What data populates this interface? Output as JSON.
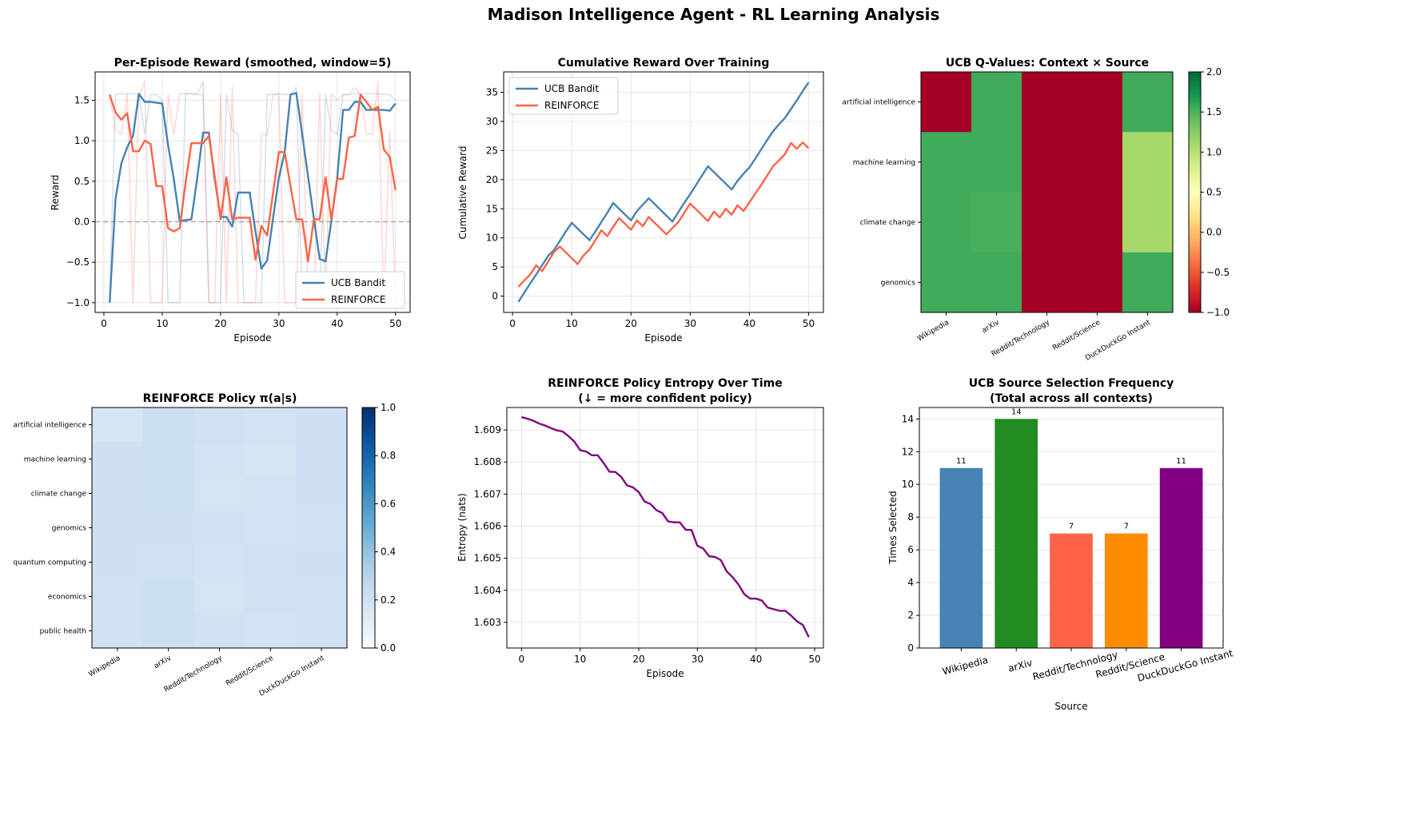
{
  "suptitle": "Madison Intelligence Agent - RL Learning Analysis",
  "colors": {
    "ucb": "#4682b4",
    "reinforce": "#ff6347",
    "entropy": "#800080",
    "grid": "#e5e5e5",
    "heat_green": "#3aa55a",
    "heat_lightgreen": "#a2d869",
    "heat_red": "#a50026"
  },
  "panels": {
    "reward": {
      "title": "Per-Episode Reward (smoothed, window=5)",
      "xlabel": "Episode",
      "ylabel": "Reward",
      "xticks": [
        "0",
        "10",
        "20",
        "30",
        "40",
        "50"
      ],
      "yticks": [
        "−1.0",
        "−0.5",
        "0.0",
        "0.5",
        "1.0",
        "1.5"
      ],
      "legend": [
        "UCB Bandit",
        "REINFORCE"
      ]
    },
    "cumulative": {
      "title": "Cumulative Reward Over Training",
      "xlabel": "Episode",
      "ylabel": "Cumulative Reward",
      "xticks": [
        "0",
        "10",
        "20",
        "30",
        "40",
        "50"
      ],
      "yticks": [
        "0",
        "5",
        "10",
        "15",
        "20",
        "25",
        "30",
        "35"
      ],
      "legend": [
        "UCB Bandit",
        "REINFORCE"
      ]
    },
    "ucb_q": {
      "title": "UCB Q-Values: Context × Source",
      "rows": [
        "artificial intelligence",
        "machine learning",
        "climate change",
        "genomics"
      ],
      "cols": [
        "Wikipedia",
        "arXiv",
        "Reddit/Technology",
        "Reddit/Science",
        "DuckDuckGo Instant"
      ],
      "cbar_ticks": [
        "2.0",
        "1.5",
        "1.0",
        "0.5",
        "0.0",
        "−0.5",
        "−1.0"
      ]
    },
    "policy": {
      "title": "REINFORCE Policy π(a|s)",
      "rows": [
        "artificial intelligence",
        "machine learning",
        "climate change",
        "genomics",
        "quantum computing",
        "economics",
        "public health"
      ],
      "cols": [
        "Wikipedia",
        "arXiv",
        "Reddit/Technology",
        "Reddit/Science",
        "DuckDuckGo Instant"
      ],
      "cbar_ticks": [
        "1.0",
        "0.8",
        "0.6",
        "0.4",
        "0.2",
        "0.0"
      ]
    },
    "entropy": {
      "title_line1": "REINFORCE Policy Entropy Over Time",
      "title_line2": "(↓ = more confident policy)",
      "xlabel": "Episode",
      "ylabel": "Entropy (nats)",
      "xticks": [
        "0",
        "10",
        "20",
        "30",
        "40",
        "50"
      ],
      "yticks": [
        "1.603",
        "1.604",
        "1.605",
        "1.606",
        "1.607",
        "1.608",
        "1.609"
      ]
    },
    "frequency": {
      "title_line1": "UCB Source Selection Frequency",
      "title_line2": "(Total across all contexts)",
      "xlabel": "Source",
      "ylabel": "Times Selected",
      "yticks": [
        "0",
        "2",
        "4",
        "6",
        "8",
        "10",
        "12",
        "14"
      ],
      "categories": [
        "Wikipedia",
        "arXiv",
        "Reddit/Technology",
        "Reddit/Science",
        "DuckDuckGo Instant"
      ],
      "value_labels": [
        "11",
        "14",
        "7",
        "7",
        "11"
      ]
    }
  },
  "chart_data": [
    {
      "type": "line",
      "title": "Per-Episode Reward (smoothed, window=5)",
      "xlabel": "Episode",
      "ylabel": "Reward",
      "xlim": [
        -1.5,
        52.5
      ],
      "ylim": [
        -1.12,
        1.85
      ],
      "grid": true,
      "legend_position": "lower right",
      "hline": {
        "y": 0.0,
        "style": "dashed",
        "color": "#aaaaaa"
      },
      "x": [
        1,
        2,
        3,
        4,
        5,
        6,
        7,
        8,
        9,
        10,
        11,
        12,
        13,
        14,
        15,
        16,
        17,
        18,
        19,
        20,
        21,
        22,
        23,
        24,
        25,
        26,
        27,
        28,
        29,
        30,
        31,
        32,
        33,
        34,
        35,
        36,
        37,
        38,
        39,
        40,
        41,
        42,
        43,
        44,
        45,
        46,
        47,
        48,
        49,
        50
      ],
      "series": [
        {
          "name": "UCB Bandit",
          "color": "#4682b4",
          "values": [
            -1.0,
            0.28,
            0.72,
            0.92,
            1.06,
            1.58,
            1.48,
            1.48,
            1.47,
            1.46,
            0.95,
            0.52,
            0.01,
            0.02,
            0.03,
            0.54,
            1.1,
            1.1,
            0.52,
            0.06,
            0.06,
            -0.06,
            0.36,
            0.36,
            0.36,
            -0.12,
            -0.58,
            -0.48,
            0.04,
            0.54,
            0.86,
            1.57,
            1.59,
            1.08,
            0.56,
            0.04,
            -0.46,
            -0.49,
            0.01,
            0.54,
            1.38,
            1.38,
            1.48,
            1.48,
            1.38,
            1.38,
            1.38,
            1.38,
            1.37,
            1.46
          ]
        },
        {
          "name": "REINFORCE",
          "color": "#ff6347",
          "values": [
            1.57,
            1.35,
            1.26,
            1.34,
            0.87,
            0.87,
            1.0,
            0.96,
            0.44,
            0.44,
            -0.08,
            -0.12,
            -0.08,
            0.48,
            0.97,
            0.97,
            0.97,
            1.06,
            0.56,
            0.03,
            0.55,
            0.03,
            0.05,
            0.05,
            0.05,
            -0.47,
            -0.05,
            -0.17,
            0.35,
            0.86,
            0.86,
            0.44,
            0.03,
            0.03,
            -0.49,
            0.03,
            0.03,
            0.55,
            0.03,
            0.53,
            0.53,
            1.04,
            1.06,
            1.57,
            1.48,
            1.38,
            1.42,
            0.89,
            0.8,
            0.39
          ]
        },
        {
          "name": "UCB Bandit (raw)",
          "color": "#4682b4",
          "alpha": 0.25,
          "values": [
            -1.0,
            1.57,
            1.58,
            1.58,
            1.58,
            1.58,
            1.08,
            1.57,
            1.57,
            1.5,
            -1.0,
            -1.0,
            -1.0,
            1.58,
            1.58,
            1.58,
            1.73,
            -1.0,
            -1.0,
            -1.0,
            1.57,
            1.13,
            1.08,
            -1.0,
            -1.0,
            -1.0,
            -1.0,
            1.57,
            1.57,
            1.58,
            1.57,
            1.57,
            1.66,
            -1.0,
            -1.0,
            -1.0,
            -1.0,
            1.57,
            1.13,
            1.08,
            1.57,
            1.57,
            1.58,
            1.58,
            1.58,
            1.58,
            1.58,
            1.57,
            1.57,
            1.5
          ]
        },
        {
          "name": "REINFORCE (raw)",
          "color": "#ff6347",
          "alpha": 0.25,
          "values": [
            1.57,
            1.13,
            1.08,
            1.58,
            -1.0,
            1.57,
            1.73,
            -1.0,
            -1.0,
            -1.0,
            1.57,
            1.08,
            1.58,
            1.58,
            1.58,
            1.57,
            1.57,
            -1.0,
            -1.0,
            1.57,
            -1.0,
            1.66,
            -1.0,
            -1.0,
            -1.0,
            -1.0,
            1.08,
            1.07,
            1.57,
            1.58,
            -1.0,
            -1.0,
            -1.0,
            1.58,
            -1.0,
            -1.0,
            1.58,
            -1.0,
            1.58,
            1.5,
            1.57,
            1.57,
            1.66,
            1.57,
            1.08,
            1.08,
            1.73,
            -1.0,
            1.13,
            -1.0
          ]
        }
      ]
    },
    {
      "type": "line",
      "title": "Cumulative Reward Over Training",
      "xlabel": "Episode",
      "ylabel": "Cumulative Reward",
      "xlim": [
        -1.5,
        52.5
      ],
      "ylim": [
        -2.8,
        38.5
      ],
      "grid": true,
      "legend_position": "upper left",
      "x": [
        1,
        2,
        3,
        4,
        5,
        6,
        7,
        8,
        9,
        10,
        11,
        12,
        13,
        14,
        15,
        16,
        17,
        18,
        19,
        20,
        21,
        22,
        23,
        24,
        25,
        26,
        27,
        28,
        29,
        30,
        31,
        32,
        33,
        34,
        35,
        36,
        37,
        38,
        39,
        40,
        41,
        42,
        43,
        44,
        45,
        46,
        47,
        48,
        49,
        50
      ],
      "series": [
        {
          "name": "UCB Bandit",
          "color": "#4682b4",
          "values": [
            -1.0,
            0.6,
            2.2,
            3.7,
            5.3,
            6.9,
            7.9,
            9.5,
            11.1,
            12.6,
            11.6,
            10.6,
            9.6,
            11.1,
            12.7,
            14.3,
            16.0,
            15.0,
            14.0,
            13.0,
            14.6,
            15.7,
            16.8,
            15.8,
            14.8,
            13.8,
            12.8,
            14.4,
            16.0,
            17.5,
            19.1,
            20.7,
            22.3,
            21.3,
            20.3,
            19.3,
            18.3,
            19.8,
            21.0,
            22.1,
            23.6,
            25.2,
            26.8,
            28.3,
            29.5,
            30.6,
            32.1,
            33.6,
            35.2,
            36.7
          ]
        },
        {
          "name": "REINFORCE",
          "color": "#ff6347",
          "values": [
            1.6,
            2.7,
            3.7,
            5.3,
            4.3,
            5.9,
            7.6,
            8.5,
            7.5,
            6.5,
            5.5,
            7.0,
            8.0,
            9.6,
            11.3,
            10.3,
            11.9,
            13.4,
            12.4,
            11.4,
            13.0,
            12.0,
            13.6,
            12.6,
            11.6,
            10.6,
            11.7,
            12.7,
            14.3,
            15.9,
            14.9,
            13.9,
            12.9,
            14.5,
            13.5,
            15.0,
            14.0,
            15.6,
            14.6,
            16.1,
            17.6,
            19.1,
            20.7,
            22.3,
            23.3,
            24.4,
            26.3,
            25.3,
            26.4,
            25.4
          ]
        }
      ]
    },
    {
      "type": "heatmap",
      "title": "UCB Q-Values: Context × Source",
      "rows": [
        "artificial intelligence",
        "machine learning",
        "climate change",
        "genomics"
      ],
      "cols": [
        "Wikipedia",
        "arXiv",
        "Reddit/Technology",
        "Reddit/Science",
        "DuckDuckGo Instant"
      ],
      "values": [
        [
          -1.0,
          1.55,
          -1.0,
          -1.0,
          1.55
        ],
        [
          1.55,
          1.55,
          -1.0,
          -1.0,
          1.1
        ],
        [
          1.55,
          1.52,
          -1.0,
          -1.0,
          1.1
        ],
        [
          1.55,
          1.55,
          -1.0,
          -1.0,
          1.55
        ]
      ],
      "colormap": "RdYlGn",
      "vmin": -1.0,
      "vmax": 2.0
    },
    {
      "type": "heatmap",
      "title": "REINFORCE Policy π(a|s)",
      "rows": [
        "artificial intelligence",
        "machine learning",
        "climate change",
        "genomics",
        "quantum computing",
        "economics",
        "public health"
      ],
      "cols": [
        "Wikipedia",
        "arXiv",
        "Reddit/Technology",
        "Reddit/Science",
        "DuckDuckGo Instant"
      ],
      "values": [
        [
          0.17,
          0.22,
          0.2,
          0.19,
          0.21
        ],
        [
          0.21,
          0.22,
          0.19,
          0.17,
          0.21
        ],
        [
          0.21,
          0.22,
          0.18,
          0.19,
          0.21
        ],
        [
          0.21,
          0.21,
          0.2,
          0.19,
          0.2
        ],
        [
          0.21,
          0.2,
          0.19,
          0.2,
          0.21
        ],
        [
          0.2,
          0.22,
          0.18,
          0.2,
          0.2
        ],
        [
          0.2,
          0.22,
          0.2,
          0.19,
          0.2
        ]
      ],
      "colormap": "Blues",
      "vmin": 0.0,
      "vmax": 1.0
    },
    {
      "type": "line",
      "title": "REINFORCE Policy Entropy Over Time\n(↓ = more confident policy)",
      "xlabel": "Episode",
      "ylabel": "Entropy (nats)",
      "xlim": [
        -2.5,
        51.5
      ],
      "ylim": [
        1.6022,
        1.6097
      ],
      "grid": true,
      "x": [
        0,
        1,
        2,
        3,
        4,
        5,
        6,
        7,
        8,
        9,
        10,
        11,
        12,
        13,
        14,
        15,
        16,
        17,
        18,
        19,
        20,
        21,
        22,
        23,
        24,
        25,
        26,
        27,
        28,
        29,
        30,
        31,
        32,
        33,
        34,
        35,
        36,
        37,
        38,
        39,
        40,
        41,
        42,
        43,
        44,
        45,
        46,
        47,
        48,
        49
      ],
      "series": [
        {
          "name": "Entropy",
          "color": "#800080",
          "values": [
            1.6094,
            1.60935,
            1.60929,
            1.6092,
            1.60914,
            1.60906,
            1.60899,
            1.60895,
            1.60881,
            1.60864,
            1.60837,
            1.60833,
            1.60821,
            1.60821,
            1.60797,
            1.6077,
            1.60769,
            1.60754,
            1.60727,
            1.60721,
            1.60706,
            1.60677,
            1.60669,
            1.6065,
            1.60641,
            1.60615,
            1.60612,
            1.60612,
            1.60589,
            1.60588,
            1.60539,
            1.6053,
            1.60506,
            1.60504,
            1.60494,
            1.60459,
            1.60441,
            1.60418,
            1.60388,
            1.60374,
            1.60374,
            1.60368,
            1.60346,
            1.60341,
            1.60336,
            1.60336,
            1.60321,
            1.60303,
            1.60292,
            1.60254
          ]
        }
      ]
    },
    {
      "type": "bar",
      "title": "UCB Source Selection Frequency\n(Total across all contexts)",
      "xlabel": "Source",
      "ylabel": "Times Selected",
      "categories": [
        "Wikipedia",
        "arXiv",
        "Reddit/Technology",
        "Reddit/Science",
        "DuckDuckGo Instant"
      ],
      "values": [
        11,
        14,
        7,
        7,
        11
      ],
      "colors": [
        "#4682b4",
        "#228b22",
        "#ff6347",
        "#ff8c00",
        "#800080"
      ],
      "ylim": [
        0,
        14.7
      ],
      "grid": "y"
    }
  ]
}
